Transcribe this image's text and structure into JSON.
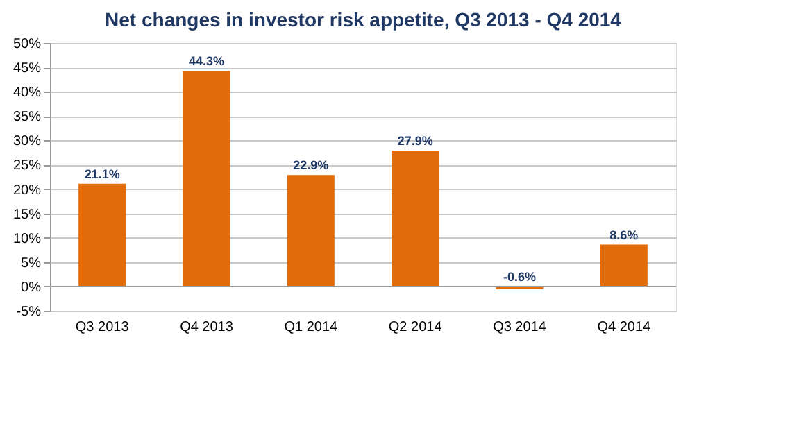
{
  "chart_data": {
    "type": "bar",
    "title": "Net changes in investor risk appetite, Q3 2013 - Q4 2014",
    "categories": [
      "Q3 2013",
      "Q4 2013",
      "Q1 2014",
      "Q2 2014",
      "Q3 2014",
      "Q4 2014"
    ],
    "values": [
      21.1,
      44.3,
      22.9,
      27.9,
      -0.6,
      8.6
    ],
    "value_labels": [
      "21.1%",
      "44.3%",
      "22.9%",
      "27.9%",
      "-0.6%",
      "8.6%"
    ],
    "color": "#e36c0a",
    "ylim": [
      -5,
      50
    ],
    "yticks": [
      {
        "value": -5,
        "label": "-5%"
      },
      {
        "value": 0,
        "label": "0%"
      },
      {
        "value": 5,
        "label": "5%"
      },
      {
        "value": 10,
        "label": "10%"
      },
      {
        "value": 15,
        "label": "15%"
      },
      {
        "value": 20,
        "label": "20%"
      },
      {
        "value": 25,
        "label": "25%"
      },
      {
        "value": 30,
        "label": "30%"
      },
      {
        "value": 35,
        "label": "35%"
      },
      {
        "value": 40,
        "label": "40%"
      },
      {
        "value": 45,
        "label": "45%"
      },
      {
        "value": 50,
        "label": "50%"
      }
    ],
    "grid": "y"
  }
}
